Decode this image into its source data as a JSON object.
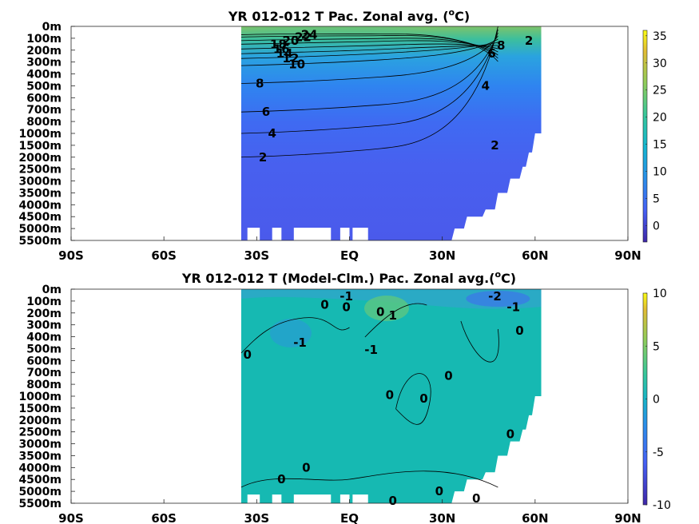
{
  "figure": {
    "panels": [
      {
        "title_main": "YR 012-012 T Pac. Zonal avg. (",
        "title_sup": "o",
        "title_end": "C)"
      },
      {
        "title_main": "YR 012-012 T (Model-Clm.) Pac. Zonal avg.(",
        "title_sup": "o",
        "title_end": "C)"
      }
    ]
  },
  "chart_data": [
    {
      "type": "heatmap",
      "title": "YR 012-012 T Pac. Zonal avg. (oC)",
      "x_tick_labels": [
        "90S",
        "60S",
        "30S",
        "EQ",
        "30N",
        "60N",
        "90N"
      ],
      "x_tick_values": [
        -90,
        -60,
        -30,
        0,
        30,
        60,
        90
      ],
      "xlim": [
        -90,
        90
      ],
      "y_tick_labels": [
        "0m",
        "100m",
        "200m",
        "300m",
        "400m",
        "500m",
        "600m",
        "700m",
        "800m",
        "1000m",
        "1500m",
        "2000m",
        "2500m",
        "3000m",
        "3500m",
        "4000m",
        "4500m",
        "5000m",
        "5500m"
      ],
      "y_scale": "piecewise depth (stretched upper ocean)",
      "data_extent_lat": [
        -35,
        62
      ],
      "colorbar": {
        "ticks": [
          35,
          30,
          25,
          20,
          15,
          10,
          5,
          0
        ],
        "range": [
          -3,
          36
        ]
      },
      "contour_labels": [
        {
          "text": "24",
          "lat": -13,
          "depth": 70
        },
        {
          "text": "22",
          "lat": -15,
          "depth": 90
        },
        {
          "text": "20",
          "lat": -19,
          "depth": 120
        },
        {
          "text": "18",
          "lat": -23,
          "depth": 150
        },
        {
          "text": "16",
          "lat": -22,
          "depth": 190
        },
        {
          "text": "14",
          "lat": -21,
          "depth": 230
        },
        {
          "text": "12",
          "lat": -19,
          "depth": 270
        },
        {
          "text": "10",
          "lat": -17,
          "depth": 320
        },
        {
          "text": "8",
          "lat": -29,
          "depth": 480
        },
        {
          "text": "6",
          "lat": -27,
          "depth": 720
        },
        {
          "text": "4",
          "lat": -25,
          "depth": 1000
        },
        {
          "text": "2",
          "lat": -28,
          "depth": 2000
        },
        {
          "text": "2",
          "lat": 47,
          "depth": 1500
        },
        {
          "text": "4",
          "lat": 44,
          "depth": 500
        },
        {
          "text": "6",
          "lat": 46,
          "depth": 230
        },
        {
          "text": "8",
          "lat": 49,
          "depth": 160
        },
        {
          "text": "2",
          "lat": 58,
          "depth": 120
        }
      ]
    },
    {
      "type": "heatmap",
      "title": "YR 012-012 T (Model-Clm.) Pac. Zonal avg.(oC)",
      "x_tick_labels": [
        "90S",
        "60S",
        "30S",
        "EQ",
        "30N",
        "60N",
        "90N"
      ],
      "x_tick_values": [
        -90,
        -60,
        -30,
        0,
        30,
        60,
        90
      ],
      "xlim": [
        -90,
        90
      ],
      "y_tick_labels": [
        "0m",
        "100m",
        "200m",
        "300m",
        "400m",
        "500m",
        "600m",
        "700m",
        "800m",
        "1000m",
        "1500m",
        "2000m",
        "2500m",
        "3000m",
        "3500m",
        "4000m",
        "4500m",
        "5000m",
        "5500m"
      ],
      "y_scale": "piecewise depth (stretched upper ocean)",
      "data_extent_lat": [
        -35,
        62
      ],
      "colorbar": {
        "ticks": [
          10,
          5,
          0,
          -5,
          -10
        ],
        "range": [
          -10,
          10
        ]
      },
      "contour_labels": [
        {
          "text": "-1",
          "lat": -1,
          "depth": 60
        },
        {
          "text": "0",
          "lat": -1,
          "depth": 150
        },
        {
          "text": "0",
          "lat": -8,
          "depth": 130
        },
        {
          "text": "0",
          "lat": 10,
          "depth": 190
        },
        {
          "text": "1",
          "lat": 14,
          "depth": 220
        },
        {
          "text": "-2",
          "lat": 47,
          "depth": 60
        },
        {
          "text": "-1",
          "lat": 53,
          "depth": 150
        },
        {
          "text": "0",
          "lat": 55,
          "depth": 350
        },
        {
          "text": "-1",
          "lat": -16,
          "depth": 450
        },
        {
          "text": "-1",
          "lat": 7,
          "depth": 510
        },
        {
          "text": "0",
          "lat": -33,
          "depth": 550
        },
        {
          "text": "0",
          "lat": 32,
          "depth": 730
        },
        {
          "text": "0",
          "lat": 13,
          "depth": 980
        },
        {
          "text": "0",
          "lat": 24,
          "depth": 1100
        },
        {
          "text": "0",
          "lat": 52,
          "depth": 2600
        },
        {
          "text": "0",
          "lat": -14,
          "depth": 4000
        },
        {
          "text": "0",
          "lat": -22,
          "depth": 4500
        },
        {
          "text": "0",
          "lat": 29,
          "depth": 5000
        },
        {
          "text": "0",
          "lat": 41,
          "depth": 5300
        },
        {
          "text": "0",
          "lat": 14,
          "depth": 5400
        }
      ]
    }
  ]
}
